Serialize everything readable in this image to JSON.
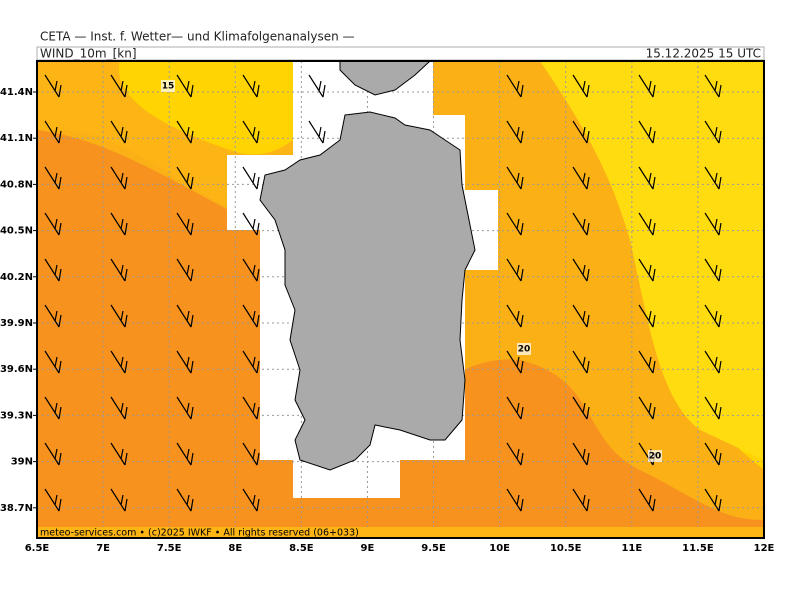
{
  "header": {
    "title": "CETA — Inst. f. Wetter— und Klimafolgenanalysen —",
    "variable": "WIND_10m_[kn]",
    "date": "15.12.2025 15 UTC"
  },
  "lat_labels": [
    "41.4N",
    "41.1N",
    "40.8N",
    "40.5N",
    "40.2N",
    "39.9N",
    "39.6N",
    "39.3N",
    "39N",
    "38.7N"
  ],
  "lon_labels": [
    "6.5E",
    "7E",
    "7.5E",
    "8E",
    "8.5E",
    "9E",
    "9.5E",
    "10E",
    "10.5E",
    "11E",
    "11.5E",
    "12E"
  ],
  "contour_labels": [
    "15",
    "20",
    "20"
  ],
  "footer": "meteo-services.com • (c)2025 IWKF • All rights reserved (06+033)"
}
